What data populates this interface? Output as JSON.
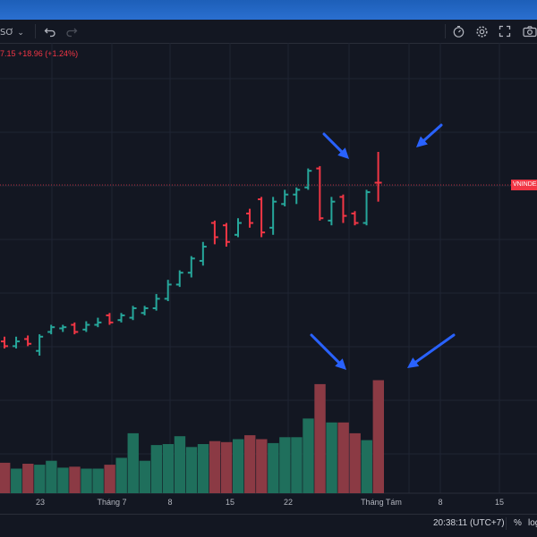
{
  "toolbar": {
    "interval_label": "SƠ",
    "undo_icon": "undo-icon",
    "redo_icon": "redo-icon",
    "replay_icon": "stopwatch-icon",
    "settings_icon": "gear-icon",
    "fullscreen_icon": "fullscreen-icon",
    "camera_icon": "camera-icon"
  },
  "header": {
    "change_text": "7.15 +18.96 (+1.24%)"
  },
  "price_tag": {
    "label": "VNINDEX",
    "color": "#f23645"
  },
  "bottom_bar": {
    "time": "20:38:11 (UTC+7)",
    "percent": "%",
    "log": "log"
  },
  "colors": {
    "up": "#26a69a",
    "down": "#f23645",
    "vol_up": "#1f6f5c",
    "vol_down": "#8b3a44",
    "background": "#131722",
    "grid": "#1f2433",
    "arrow": "#2962ff"
  },
  "chart_data": {
    "type": "ohlc",
    "x_tick_labels": [
      "23",
      "Tháng 7",
      "8",
      "15",
      "22",
      "Tháng Tám",
      "8",
      "15"
    ],
    "bars": [
      {
        "d": "down",
        "o": 1218,
        "h": 1222,
        "l": 1212,
        "c": 1214,
        "v": 3.1
      },
      {
        "d": "up",
        "o": 1214,
        "h": 1222,
        "l": 1212,
        "c": 1218,
        "v": 2.5
      },
      {
        "d": "down",
        "o": 1220,
        "h": 1223,
        "l": 1214,
        "c": 1216,
        "v": 3.0
      },
      {
        "d": "up",
        "o": 1210,
        "h": 1224,
        "l": 1206,
        "c": 1222,
        "v": 2.9
      },
      {
        "d": "up",
        "o": 1226,
        "h": 1232,
        "l": 1224,
        "c": 1230,
        "v": 3.3
      },
      {
        "d": "up",
        "o": 1229,
        "h": 1232,
        "l": 1226,
        "c": 1230,
        "v": 2.6
      },
      {
        "d": "down",
        "o": 1232,
        "h": 1234,
        "l": 1224,
        "c": 1226,
        "v": 2.7
      },
      {
        "d": "up",
        "o": 1228,
        "h": 1235,
        "l": 1226,
        "c": 1232,
        "v": 2.5
      },
      {
        "d": "up",
        "o": 1232,
        "h": 1238,
        "l": 1230,
        "c": 1234,
        "v": 2.5
      },
      {
        "d": "down",
        "o": 1240,
        "h": 1242,
        "l": 1232,
        "c": 1234,
        "v": 2.9
      },
      {
        "d": "up",
        "o": 1236,
        "h": 1242,
        "l": 1234,
        "c": 1240,
        "v": 3.6
      },
      {
        "d": "up",
        "o": 1238,
        "h": 1248,
        "l": 1236,
        "c": 1246,
        "v": 6.1
      },
      {
        "d": "up",
        "o": 1242,
        "h": 1248,
        "l": 1240,
        "c": 1246,
        "v": 3.3
      },
      {
        "d": "up",
        "o": 1246,
        "h": 1258,
        "l": 1244,
        "c": 1254,
        "v": 4.9
      },
      {
        "d": "up",
        "o": 1254,
        "h": 1270,
        "l": 1252,
        "c": 1266,
        "v": 5.0
      },
      {
        "d": "up",
        "o": 1266,
        "h": 1278,
        "l": 1264,
        "c": 1276,
        "v": 5.8
      },
      {
        "d": "up",
        "o": 1276,
        "h": 1290,
        "l": 1272,
        "c": 1288,
        "v": 4.7
      },
      {
        "d": "up",
        "o": 1286,
        "h": 1302,
        "l": 1282,
        "c": 1298,
        "v": 5.0
      },
      {
        "d": "down",
        "o": 1318,
        "h": 1320,
        "l": 1300,
        "c": 1306,
        "v": 5.3
      },
      {
        "d": "down",
        "o": 1316,
        "h": 1318,
        "l": 1298,
        "c": 1302,
        "v": 5.2
      },
      {
        "d": "up",
        "o": 1308,
        "h": 1322,
        "l": 1306,
        "c": 1318,
        "v": 5.5
      },
      {
        "d": "down",
        "o": 1326,
        "h": 1330,
        "l": 1314,
        "c": 1318,
        "v": 5.9
      },
      {
        "d": "down",
        "o": 1338,
        "h": 1340,
        "l": 1306,
        "c": 1310,
        "v": 5.5
      },
      {
        "d": "up",
        "o": 1314,
        "h": 1340,
        "l": 1308,
        "c": 1336,
        "v": 5.1
      },
      {
        "d": "up",
        "o": 1334,
        "h": 1346,
        "l": 1332,
        "c": 1342,
        "v": 5.7
      },
      {
        "d": "up",
        "o": 1342,
        "h": 1348,
        "l": 1334,
        "c": 1346,
        "v": 5.7
      },
      {
        "d": "up",
        "o": 1348,
        "h": 1364,
        "l": 1346,
        "c": 1362,
        "v": 7.6
      },
      {
        "d": "down",
        "o": 1364,
        "h": 1366,
        "l": 1320,
        "c": 1322,
        "v": 11.1
      },
      {
        "d": "up",
        "o": 1320,
        "h": 1340,
        "l": 1316,
        "c": 1336,
        "v": 7.2
      },
      {
        "d": "down",
        "o": 1340,
        "h": 1342,
        "l": 1318,
        "c": 1324,
        "v": 7.2
      },
      {
        "d": "down",
        "o": 1326,
        "h": 1328,
        "l": 1316,
        "c": 1318,
        "v": 6.1
      },
      {
        "d": "up",
        "o": 1318,
        "h": 1346,
        "l": 1316,
        "c": 1344,
        "v": 5.4
      },
      {
        "d": "down",
        "o": 1352,
        "h": 1378,
        "l": 1336,
        "c": 1352,
        "v": 11.5
      }
    ],
    "last_price_line": 1352,
    "annotations": [
      "arrow",
      "arrow",
      "arrow",
      "arrow"
    ]
  }
}
